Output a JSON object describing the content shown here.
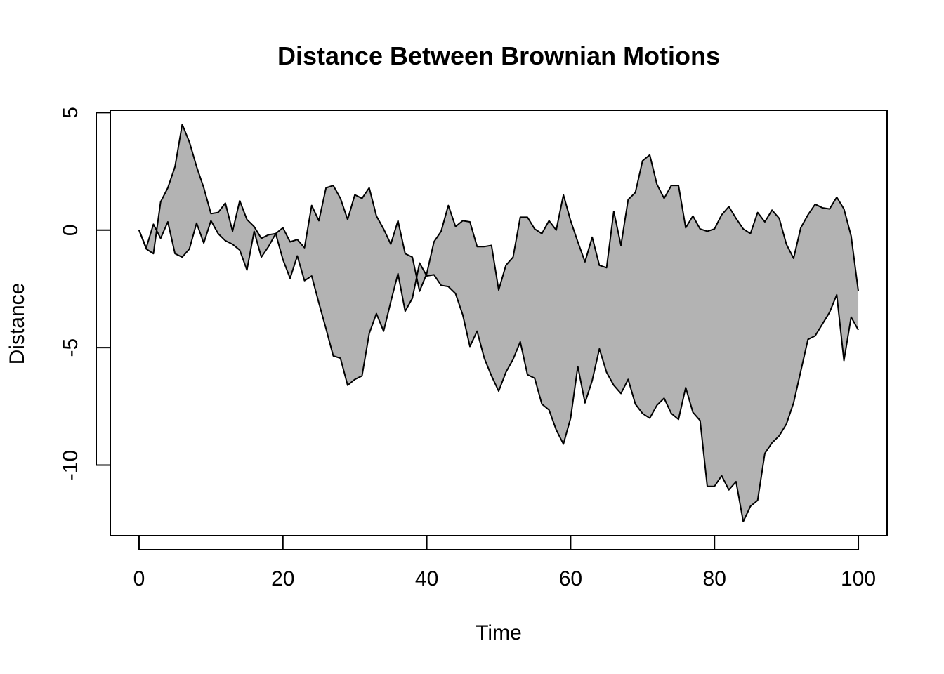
{
  "chart_data": {
    "type": "area",
    "title": "Distance Between Brownian Motions",
    "xlabel": "Time",
    "ylabel": "Distance",
    "xlim": [
      -4,
      104
    ],
    "ylim": [
      -13,
      5.1
    ],
    "x_ticks": [
      0,
      20,
      40,
      60,
      80,
      100
    ],
    "y_ticks": [
      5,
      0,
      -5,
      -10
    ],
    "x": [
      0,
      1,
      2,
      3,
      4,
      5,
      6,
      7,
      8,
      9,
      10,
      11,
      12,
      13,
      14,
      15,
      16,
      17,
      18,
      19,
      20,
      21,
      22,
      23,
      24,
      25,
      26,
      27,
      28,
      29,
      30,
      31,
      32,
      33,
      34,
      35,
      36,
      37,
      38,
      39,
      40,
      41,
      42,
      43,
      44,
      45,
      46,
      47,
      48,
      49,
      50,
      51,
      52,
      53,
      54,
      55,
      56,
      57,
      58,
      59,
      60,
      61,
      62,
      63,
      64,
      65,
      66,
      67,
      68,
      69,
      70,
      71,
      72,
      73,
      74,
      75,
      76,
      77,
      78,
      79,
      80,
      81,
      82,
      83,
      84,
      85,
      86,
      87,
      88,
      89,
      90,
      91,
      92,
      93,
      94,
      95,
      96,
      97,
      98,
      99,
      100
    ],
    "series": [
      {
        "values": [
          0,
          -0.75,
          0.25,
          -0.35,
          0.35,
          -1,
          -1.15,
          -0.8,
          0.3,
          -0.55,
          0.4,
          -0.15,
          -0.45,
          -0.6,
          -0.85,
          -1.7,
          -0.05,
          -1.15,
          -0.7,
          -0.15,
          0.1,
          -0.5,
          -0.4,
          -0.75,
          1.05,
          0.4,
          1.8,
          1.9,
          1.35,
          0.45,
          1.5,
          1.35,
          1.8,
          0.6,
          0.05,
          -0.6,
          0.4,
          -1,
          -1.15,
          -2.6,
          -1.85,
          -0.5,
          -0.05,
          1.05,
          0.15,
          0.4,
          0.35,
          -0.7,
          -0.7,
          -0.65,
          -2.55,
          -1.5,
          -1.15,
          0.55,
          0.55,
          0.05,
          -0.15,
          0.4,
          0,
          1.5,
          0.4,
          -0.5,
          -1.35,
          -0.3,
          -1.5,
          -1.6,
          0.8,
          -0.65,
          1.3,
          1.6,
          2.95,
          3.2,
          1.95,
          1.35,
          1.9,
          1.9,
          0.1,
          0.6,
          0.05,
          -0.05,
          0.05,
          0.65,
          1,
          0.5,
          0.05,
          -0.15,
          0.75,
          0.35,
          0.85,
          0.5,
          -0.6,
          -1.2,
          0.1,
          0.65,
          1.1,
          0.95,
          0.9,
          1.4,
          0.9,
          -0.25,
          -2.6
        ]
      },
      {
        "values": [
          0,
          -0.8,
          -1,
          1.2,
          1.8,
          2.7,
          4.5,
          3.75,
          2.7,
          1.8,
          0.7,
          0.75,
          1.15,
          -0.05,
          1.25,
          0.45,
          0.15,
          -0.35,
          -0.2,
          -0.15,
          -1.25,
          -2.05,
          -1.1,
          -2.15,
          -1.95,
          -3.1,
          -4.2,
          -5.35,
          -5.45,
          -6.6,
          -6.35,
          -6.2,
          -4.4,
          -3.55,
          -4.3,
          -3.05,
          -1.85,
          -3.45,
          -2.9,
          -1.4,
          -1.95,
          -1.9,
          -2.35,
          -2.4,
          -2.7,
          -3.6,
          -4.95,
          -4.3,
          -5.45,
          -6.2,
          -6.85,
          -6.05,
          -5.5,
          -4.75,
          -6.15,
          -6.3,
          -7.4,
          -7.65,
          -8.5,
          -9.1,
          -8,
          -5.8,
          -7.35,
          -6.4,
          -5.05,
          -6.05,
          -6.6,
          -6.95,
          -6.35,
          -7.4,
          -7.8,
          -8,
          -7.45,
          -7.15,
          -7.8,
          -8.05,
          -6.7,
          -7.75,
          -8.1,
          -10.9,
          -10.9,
          -10.45,
          -11.05,
          -10.7,
          -12.4,
          -11.75,
          -11.5,
          -9.5,
          -9.05,
          -8.75,
          -8.25,
          -7.35,
          -6,
          -4.65,
          -4.5,
          -4,
          -3.5,
          -2.75,
          -5.55,
          -3.7,
          -4.25
        ]
      }
    ],
    "grid": false,
    "legend": "none",
    "fill_color": "#b3b3b3",
    "line_color": "#000000"
  }
}
